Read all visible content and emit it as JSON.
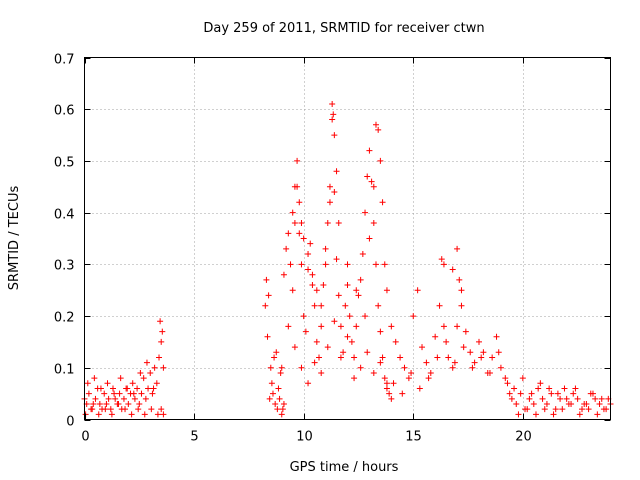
{
  "chart_data": {
    "type": "scatter",
    "title": "Day 259 of 2011, SRMTID for receiver ctwn",
    "xlabel": "GPS time / hours",
    "ylabel": "SRMTID / TECUs",
    "xlim": [
      0,
      24
    ],
    "ylim": [
      0,
      0.7
    ],
    "xticks": [
      0,
      5,
      10,
      15,
      20
    ],
    "yticks": [
      0,
      0.1,
      0.2,
      0.3,
      0.4,
      0.5,
      0.6,
      0.7
    ],
    "xtick_labels": [
      "0",
      "5",
      "10",
      "15",
      "20"
    ],
    "ytick_labels": [
      "0",
      "0.1",
      "0.2",
      "0.3",
      "0.4",
      "0.5",
      "0.6",
      "0.7"
    ],
    "grid": true,
    "marker": "plus",
    "color": "#ff0000",
    "series": [
      {
        "name": "SRMTID",
        "x": [
          0.0,
          0.1,
          0.2,
          0.3,
          0.4,
          0.5,
          0.6,
          0.7,
          0.8,
          0.9,
          1.0,
          1.1,
          1.2,
          1.3,
          1.4,
          1.5,
          1.6,
          1.7,
          1.8,
          1.9,
          2.0,
          2.1,
          2.2,
          2.3,
          2.4,
          2.5,
          2.6,
          2.7,
          2.8,
          2.9,
          3.0,
          3.1,
          3.2,
          3.3,
          3.4,
          3.5,
          3.6,
          0.15,
          0.45,
          0.75,
          1.05,
          1.35,
          1.65,
          1.95,
          2.25,
          2.55,
          2.85,
          3.15,
          3.45,
          3.55,
          3.5,
          3.6,
          0.05,
          0.35,
          0.65,
          0.95,
          1.25,
          1.55,
          1.85,
          2.15,
          2.45,
          2.75,
          3.05,
          3.35,
          8.3,
          8.4,
          8.5,
          8.6,
          8.7,
          8.8,
          8.9,
          9.0,
          9.1,
          8.35,
          8.55,
          8.75,
          8.95,
          9.05,
          8.25,
          8.45,
          8.65,
          8.85,
          9.0,
          9.1,
          9.2,
          9.3,
          9.4,
          9.5,
          9.6,
          9.7,
          9.8,
          9.9,
          10.0,
          10.1,
          10.2,
          10.3,
          10.4,
          10.5,
          10.6,
          10.7,
          10.8,
          10.9,
          11.0,
          11.1,
          11.2,
          11.3,
          11.4,
          11.5,
          11.6,
          11.7,
          11.8,
          11.9,
          12.0,
          12.1,
          12.2,
          12.3,
          12.4,
          12.5,
          12.6,
          12.7,
          12.8,
          12.9,
          13.0,
          13.1,
          13.2,
          13.3,
          13.4,
          13.5,
          13.6,
          13.7,
          13.8,
          13.9,
          14.0,
          9.5,
          9.6,
          9.7,
          9.8,
          9.9,
          10.0,
          10.2,
          10.4,
          10.6,
          10.8,
          11.0,
          11.2,
          11.3,
          11.35,
          11.4,
          11.5,
          11.6,
          12.0,
          12.4,
          12.8,
          13.0,
          13.2,
          13.3,
          13.4,
          13.5,
          13.6,
          13.7,
          13.8,
          9.3,
          9.6,
          9.9,
          10.2,
          10.5,
          10.8,
          11.1,
          11.4,
          11.7,
          12.0,
          12.3,
          12.6,
          12.9,
          13.2,
          13.5,
          13.8,
          14.0,
          14.2,
          14.4,
          14.6,
          14.8,
          15.0,
          15.2,
          15.4,
          15.6,
          15.8,
          16.0,
          16.2,
          16.4,
          16.6,
          16.8,
          17.0,
          17.2,
          17.4,
          17.6,
          17.8,
          18.0,
          18.2,
          18.4,
          18.6,
          18.8,
          19.0,
          19.2,
          19.4,
          14.1,
          14.5,
          14.9,
          15.3,
          15.7,
          16.1,
          16.5,
          16.9,
          17.3,
          17.7,
          18.1,
          18.5,
          18.9,
          19.3,
          16.3,
          16.8,
          17.0,
          17.1,
          16.4,
          17.2,
          19.5,
          19.7,
          19.9,
          20.1,
          20.3,
          20.5,
          20.7,
          20.9,
          21.1,
          21.3,
          21.5,
          21.7,
          21.9,
          22.1,
          22.3,
          22.5,
          22.7,
          22.9,
          23.1,
          23.3,
          23.5,
          23.7,
          23.9,
          19.6,
          20.0,
          20.4,
          20.8,
          21.2,
          21.6,
          22.0,
          22.4,
          22.8,
          23.2,
          23.6,
          24.0,
          19.8,
          20.2,
          20.6,
          21.0,
          21.4,
          21.8,
          22.2,
          22.6,
          23.0,
          23.4,
          23.8
        ],
        "y": [
          0.04,
          0.03,
          0.05,
          0.02,
          0.03,
          0.04,
          0.06,
          0.03,
          0.02,
          0.05,
          0.03,
          0.04,
          0.02,
          0.06,
          0.04,
          0.03,
          0.05,
          0.02,
          0.04,
          0.06,
          0.03,
          0.05,
          0.07,
          0.04,
          0.06,
          0.03,
          0.05,
          0.08,
          0.04,
          0.06,
          0.09,
          0.05,
          0.1,
          0.07,
          0.12,
          0.15,
          0.1,
          0.07,
          0.08,
          0.06,
          0.07,
          0.05,
          0.08,
          0.06,
          0.05,
          0.09,
          0.11,
          0.06,
          0.19,
          0.17,
          0.02,
          0.01,
          0.01,
          0.02,
          0.01,
          0.02,
          0.01,
          0.03,
          0.02,
          0.01,
          0.02,
          0.01,
          0.02,
          0.01,
          0.27,
          0.24,
          0.1,
          0.05,
          0.03,
          0.02,
          0.04,
          0.01,
          0.03,
          0.16,
          0.07,
          0.13,
          0.09,
          0.02,
          0.22,
          0.04,
          0.12,
          0.06,
          0.1,
          0.28,
          0.33,
          0.36,
          0.3,
          0.25,
          0.38,
          0.45,
          0.36,
          0.3,
          0.2,
          0.17,
          0.29,
          0.34,
          0.26,
          0.22,
          0.15,
          0.12,
          0.18,
          0.26,
          0.33,
          0.38,
          0.42,
          0.58,
          0.44,
          0.31,
          0.24,
          0.18,
          0.13,
          0.22,
          0.26,
          0.2,
          0.15,
          0.12,
          0.18,
          0.24,
          0.27,
          0.32,
          0.4,
          0.47,
          0.52,
          0.46,
          0.38,
          0.3,
          0.22,
          0.17,
          0.12,
          0.08,
          0.06,
          0.05,
          0.04,
          0.4,
          0.45,
          0.5,
          0.42,
          0.38,
          0.35,
          0.32,
          0.28,
          0.25,
          0.22,
          0.3,
          0.45,
          0.61,
          0.59,
          0.55,
          0.48,
          0.38,
          0.3,
          0.25,
          0.2,
          0.35,
          0.45,
          0.57,
          0.56,
          0.5,
          0.42,
          0.3,
          0.25,
          0.18,
          0.14,
          0.1,
          0.07,
          0.11,
          0.09,
          0.14,
          0.19,
          0.12,
          0.16,
          0.08,
          0.1,
          0.13,
          0.09,
          0.11,
          0.07,
          0.18,
          0.15,
          0.12,
          0.1,
          0.08,
          0.2,
          0.25,
          0.14,
          0.11,
          0.09,
          0.16,
          0.22,
          0.18,
          0.12,
          0.1,
          0.18,
          0.22,
          0.17,
          0.13,
          0.11,
          0.15,
          0.13,
          0.09,
          0.12,
          0.16,
          0.1,
          0.08,
          0.05,
          0.07,
          0.05,
          0.09,
          0.06,
          0.08,
          0.12,
          0.15,
          0.11,
          0.14,
          0.1,
          0.12,
          0.09,
          0.13,
          0.07,
          0.31,
          0.29,
          0.33,
          0.27,
          0.3,
          0.25,
          0.04,
          0.03,
          0.05,
          0.02,
          0.04,
          0.03,
          0.06,
          0.04,
          0.03,
          0.05,
          0.02,
          0.04,
          0.06,
          0.03,
          0.05,
          0.04,
          0.02,
          0.03,
          0.05,
          0.04,
          0.03,
          0.02,
          0.04,
          0.06,
          0.08,
          0.05,
          0.07,
          0.06,
          0.05,
          0.04,
          0.06,
          0.03,
          0.05,
          0.04,
          0.03,
          0.01,
          0.02,
          0.01,
          0.02,
          0.01,
          0.02,
          0.03,
          0.01,
          0.02,
          0.01,
          0.02
        ]
      }
    ]
  }
}
